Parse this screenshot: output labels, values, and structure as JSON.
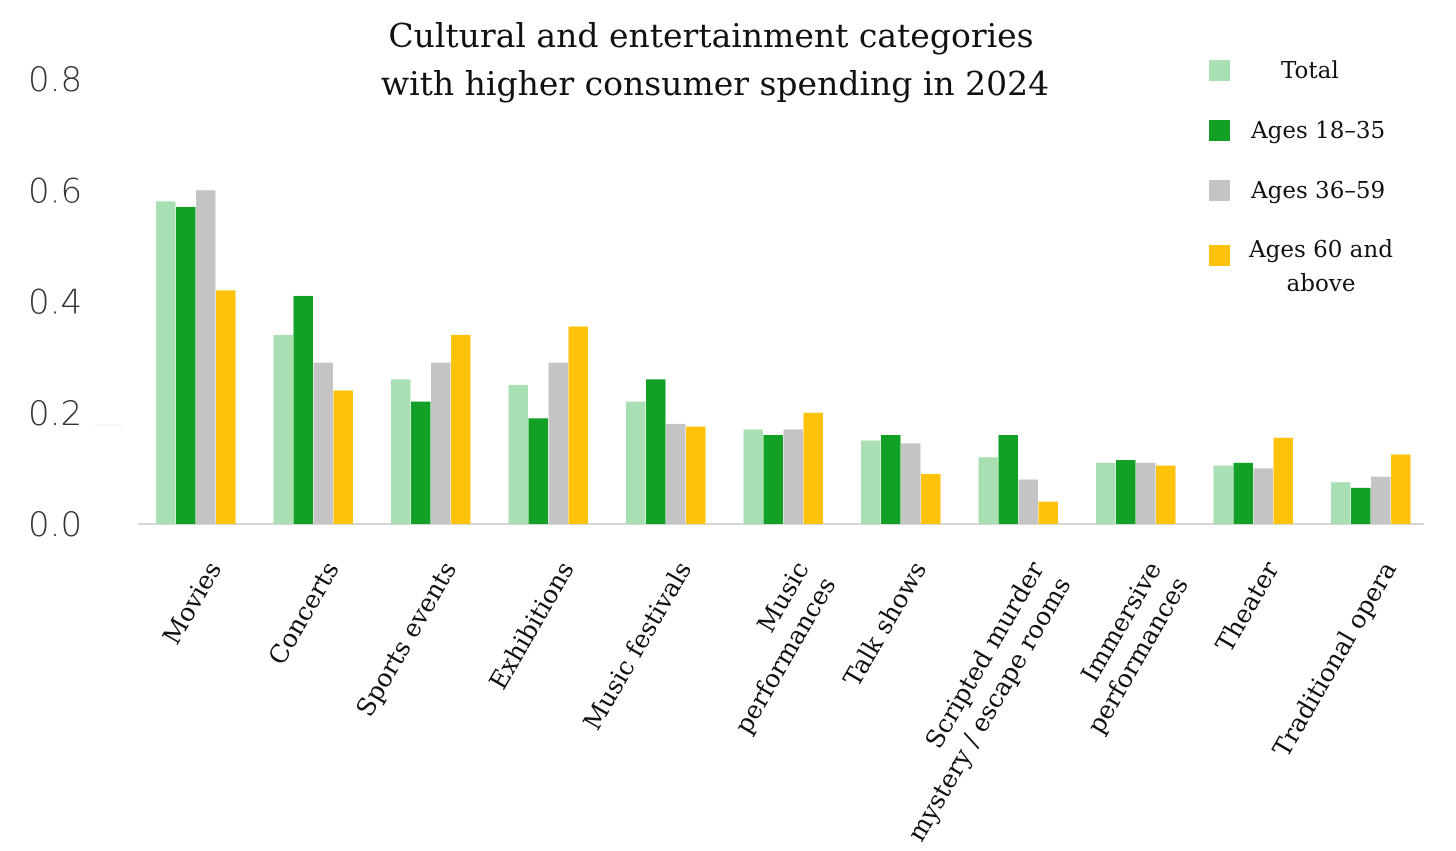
{
  "chart_data": {
    "type": "bar",
    "title_lines": [
      "Cultural and entertainment categories",
      "with higher consumer spending in 2024"
    ],
    "xlabel": "",
    "ylabel": "",
    "ylim": [
      0,
      0.8
    ],
    "yticks": [
      "0.0",
      "0.2",
      "0.4",
      "0.6",
      "0.8"
    ],
    "grid": false,
    "legend_position": "top-right",
    "categories": [
      [
        "Movies"
      ],
      [
        "Concerts"
      ],
      [
        "Sports events"
      ],
      [
        "Exhibitions"
      ],
      [
        "Music festivals"
      ],
      [
        "Music",
        "performances"
      ],
      [
        "Talk shows"
      ],
      [
        "Scripted murder",
        "mystery / escape rooms"
      ],
      [
        "Immersive",
        "performances"
      ],
      [
        "Theater"
      ],
      [
        "Traditional opera"
      ]
    ],
    "series": [
      {
        "name": "Total",
        "color": "#a8e0b4",
        "values": [
          0.58,
          0.34,
          0.26,
          0.25,
          0.22,
          0.17,
          0.15,
          0.12,
          0.11,
          0.105,
          0.075
        ]
      },
      {
        "name": "Ages 18–35",
        "color": "#12a126",
        "values": [
          0.57,
          0.41,
          0.22,
          0.19,
          0.26,
          0.16,
          0.16,
          0.16,
          0.115,
          0.11,
          0.065
        ]
      },
      {
        "name": "Ages 36–59",
        "color": "#c4c4c4",
        "values": [
          0.6,
          0.29,
          0.29,
          0.29,
          0.18,
          0.17,
          0.145,
          0.08,
          0.11,
          0.1,
          0.085
        ]
      },
      {
        "name": "Ages 60 and above",
        "name_lines": [
          "Ages 60 and",
          "above"
        ],
        "color": "#ffc20a",
        "values": [
          0.42,
          0.24,
          0.34,
          0.355,
          0.175,
          0.2,
          0.09,
          0.04,
          0.105,
          0.155,
          0.125
        ]
      }
    ]
  }
}
